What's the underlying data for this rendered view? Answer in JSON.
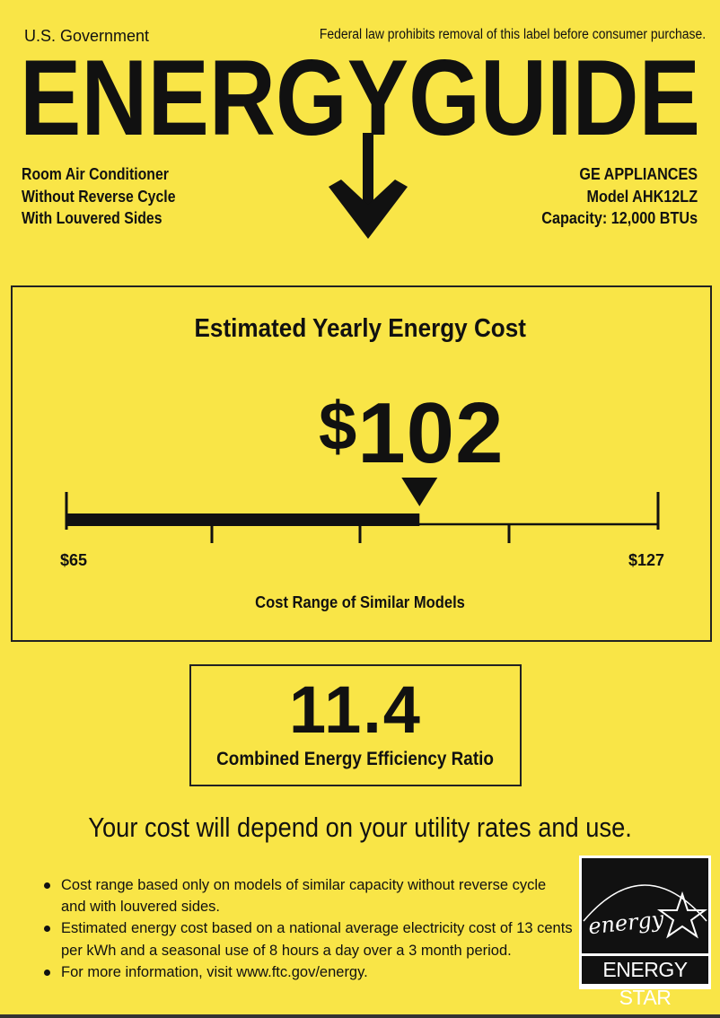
{
  "header": {
    "left": "U.S. Government",
    "right": "Federal law prohibits removal of this label before consumer purchase.",
    "logo": "ENERGYGUIDE"
  },
  "product": {
    "lines": [
      "Room Air Conditioner",
      "Without Reverse Cycle",
      "With Louvered Sides"
    ]
  },
  "manufacturer": {
    "brand": "GE APPLIANCES",
    "model": "Model AHK12LZ",
    "capacity": "Capacity: 12,000 BTUs"
  },
  "cost_section": {
    "title": "Estimated Yearly Energy Cost",
    "currency": "$",
    "cost": "102",
    "cost_value": 102,
    "range_min_label": "$65",
    "range_max_label": "$127",
    "range_min": 65,
    "range_max": 127,
    "range_label": "Cost Range of Similar Models"
  },
  "efficiency": {
    "value": "11.4",
    "label": "Combined Energy Efficiency Ratio"
  },
  "disclaimer": "Your cost will depend on your utility rates and use.",
  "bullets": [
    "Cost range based only on models of similar capacity without reverse cycle and with louvered sides.",
    "Estimated energy cost based on a national average electricity cost of 13 cents per kWh and a seasonal use of 8 hours a day over a 3 month period.",
    "For more information, visit www.ftc.gov/energy."
  ],
  "energy_star": {
    "script": "energy",
    "label": "ENERGY STAR"
  },
  "colors": {
    "background": "#f9e547",
    "ink": "#111111"
  }
}
